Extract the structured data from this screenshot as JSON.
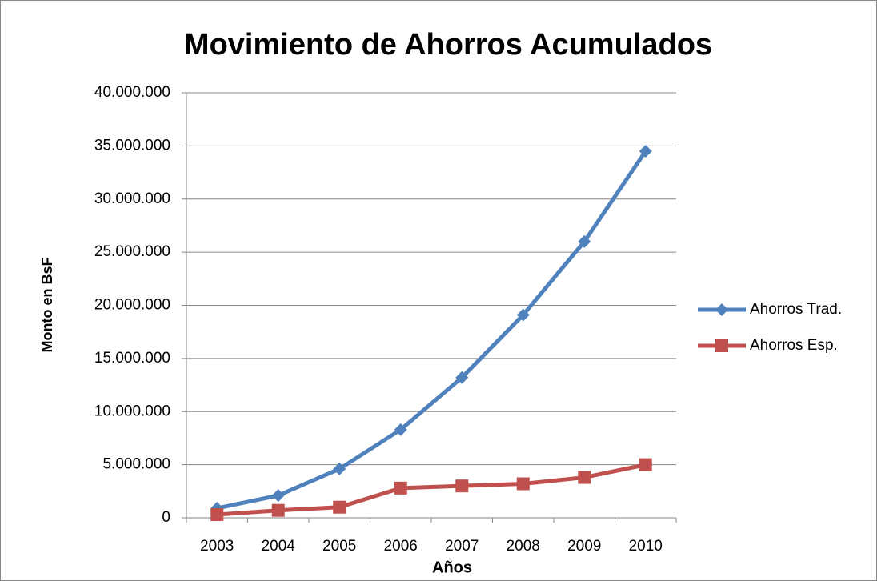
{
  "chart_data": {
    "type": "line",
    "title": "Movimiento de Ahorros Acumulados",
    "x_label": "Años",
    "y_label": "Monto en BsF",
    "categories": [
      "2003",
      "2004",
      "2005",
      "2006",
      "2007",
      "2008",
      "2009",
      "2010"
    ],
    "series": [
      {
        "name": "Ahorros Trad.",
        "color": "#4f81bd",
        "marker": "diamond",
        "values": [
          900000,
          2100000,
          4600000,
          8300000,
          13200000,
          19100000,
          26000000,
          34500000
        ]
      },
      {
        "name": "Ahorros Esp.",
        "color": "#c0504d",
        "marker": "square",
        "values": [
          300000,
          700000,
          1000000,
          2800000,
          3000000,
          3200000,
          3800000,
          5000000
        ]
      }
    ],
    "ylim": [
      0,
      40000000
    ],
    "yticks": [
      0,
      {
        "value": 5000000,
        "label": "5.000.000"
      },
      {
        "value": 10000000,
        "label": "10.000.000"
      },
      {
        "value": 15000000,
        "label": "15.000.000"
      },
      {
        "value": 20000000,
        "label": "20.000.000"
      },
      {
        "value": 25000000,
        "label": "25.000.000"
      },
      {
        "value": 30000000,
        "label": "30.000.000"
      },
      {
        "value": 35000000,
        "label": "35.000.000"
      },
      {
        "value": 40000000,
        "label": "40.000.000"
      }
    ],
    "grid": true,
    "legend": "right"
  }
}
